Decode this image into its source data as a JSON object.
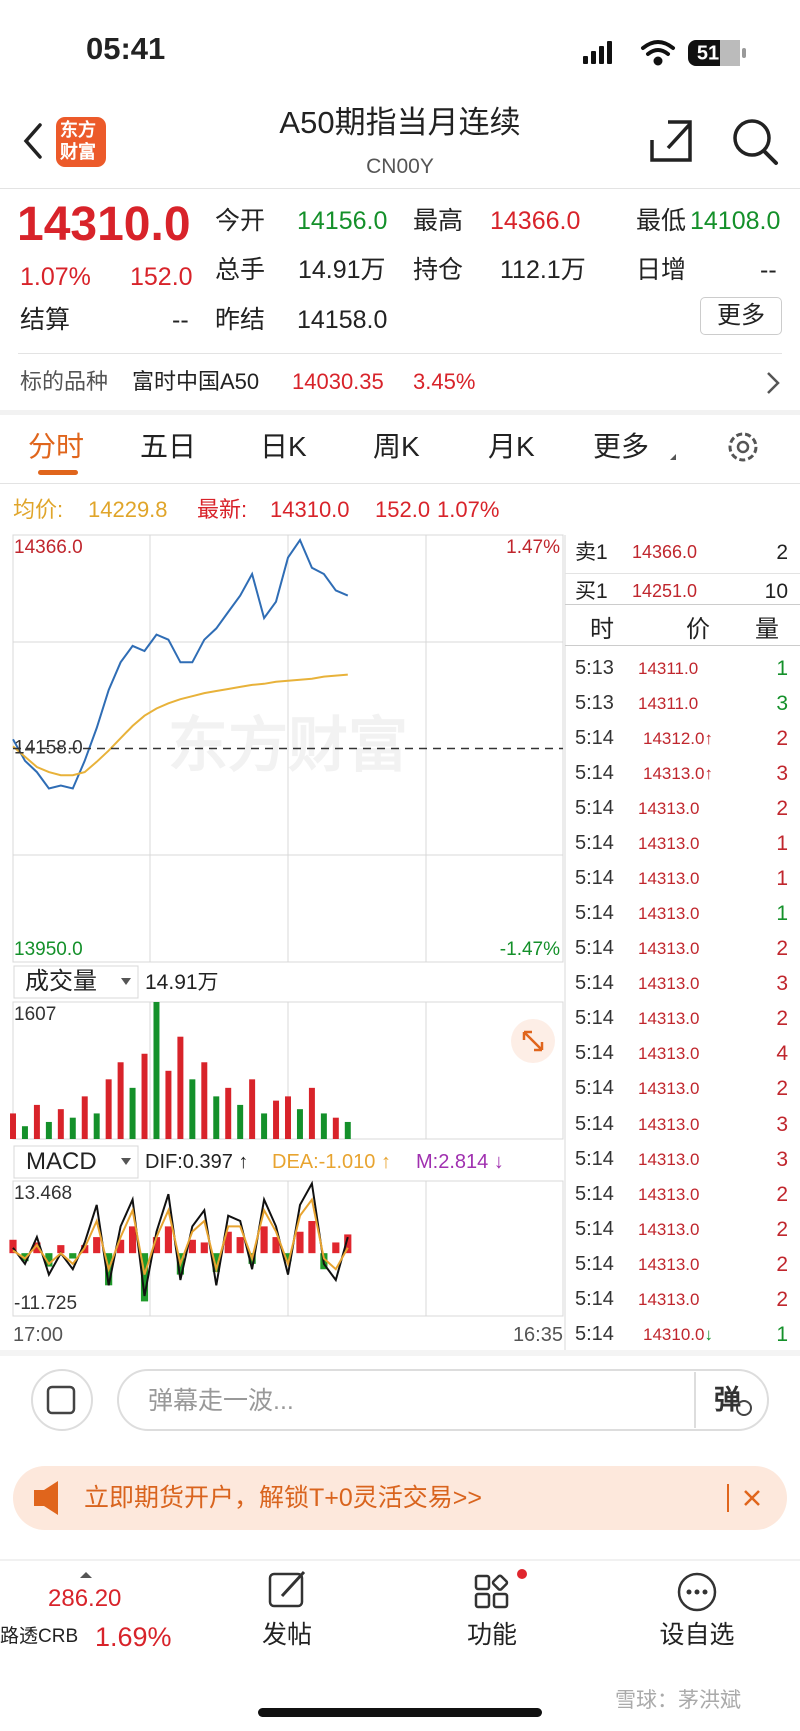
{
  "status_bar": {
    "time": "05:41",
    "battery": "51"
  },
  "header": {
    "logo": [
      "东方",
      "财富"
    ],
    "title": "A50期指当月连续",
    "code": "CN00Y"
  },
  "quote": {
    "last": "14310.0",
    "change_pct": "1.07%",
    "change": "152.0",
    "fields": [
      {
        "label": "今开",
        "value": "14156.0"
      },
      {
        "label": "最高",
        "value": "14366.0"
      },
      {
        "label": "最低",
        "value": "14108.0"
      },
      {
        "label": "总手",
        "value": "14.91万"
      },
      {
        "label": "持仓",
        "value": "112.1万"
      },
      {
        "label": "日增",
        "value": "--"
      },
      {
        "label": "结算",
        "value": "--"
      },
      {
        "label": "昨结",
        "value": "14158.0"
      }
    ],
    "more": "更多"
  },
  "underlying": {
    "label": "标的品种",
    "name": "富时中国A50",
    "price": "14030.35",
    "pct": "3.45%"
  },
  "tabs": [
    "分时",
    "五日",
    "日K",
    "周K",
    "月K",
    "更多"
  ],
  "summary": {
    "avg_label": "均价:",
    "avg": "14229.8",
    "last_label": "最新:",
    "last": "14310.0",
    "change": "152.0",
    "pct": "1.07%"
  },
  "chart_data": [
    {
      "type": "line",
      "watermark": "东方财富",
      "ylim": [
        13950,
        14366
      ],
      "yticks": [
        {
          "value": 14366,
          "label": "14366.0"
        },
        {
          "value": 14158,
          "label": "14158.0"
        },
        {
          "value": 13950,
          "label": "13950.0"
        }
      ],
      "y2lim": [
        -1.47,
        1.47
      ],
      "y2ticks": [
        {
          "value": 1.47,
          "label": "1.47%"
        },
        {
          "value": -1.47,
          "label": "-1.47%"
        }
      ],
      "series": [
        {
          "color": "#2f6db5",
          "values": [
            14167,
            14146,
            14135,
            14119,
            14122,
            14119,
            14146,
            14178,
            14215,
            14242,
            14258,
            14253,
            14269,
            14264,
            14242,
            14242,
            14264,
            14275,
            14291,
            14307,
            14328,
            14285,
            14301,
            14344,
            14361,
            14334,
            14328,
            14312,
            14307,
            null,
            null,
            null,
            null,
            null,
            null,
            null,
            null,
            null,
            null,
            null,
            null,
            null,
            null,
            null,
            null,
            null,
            null
          ]
        },
        {
          "color": "#e8b23a",
          "values": [
            14160,
            14150,
            14140,
            14135,
            14132,
            14132,
            14135,
            14145,
            14156,
            14168,
            14180,
            14190,
            14197,
            14202,
            14206,
            14209,
            14212,
            14214,
            14216,
            14218,
            14220,
            14221,
            14223,
            14224,
            14225,
            14226,
            14228,
            14229,
            14230,
            null,
            null,
            null,
            null,
            null,
            null,
            null,
            null,
            null,
            null,
            null,
            null,
            null,
            null,
            null,
            null,
            null,
            null
          ]
        }
      ]
    },
    {
      "type": "bar",
      "title": "成交量",
      "total": "14.91万",
      "ylim": [
        0,
        1607
      ],
      "yticks": [
        1607
      ],
      "values": [
        300,
        150,
        400,
        200,
        350,
        250,
        500,
        300,
        700,
        900,
        600,
        1000,
        1607,
        800,
        1200,
        700,
        900,
        500,
        600,
        400,
        700,
        300,
        450,
        500,
        350,
        600,
        300,
        250,
        200,
        null,
        null,
        null,
        null,
        null,
        null,
        null,
        null,
        null,
        null,
        null,
        null,
        null,
        null,
        null,
        null,
        null,
        null
      ],
      "colors": [
        "#d8232a",
        "#14902a",
        "#d8232a",
        "#14902a",
        "#d8232a",
        "#14902a",
        "#d8232a",
        "#14902a",
        "#d8232a",
        "#d8232a",
        "#14902a",
        "#d8232a",
        "#14902a",
        "#d8232a",
        "#d8232a",
        "#14902a",
        "#d8232a",
        "#14902a",
        "#d8232a",
        "#14902a",
        "#d8232a",
        "#14902a",
        "#d8232a",
        "#d8232a",
        "#14902a",
        "#d8232a",
        "#14902a",
        "#d8232a",
        "#14902a",
        null,
        null,
        null,
        null,
        null,
        null,
        null,
        null,
        null,
        null,
        null,
        null,
        null,
        null,
        null,
        null,
        null,
        null
      ]
    },
    {
      "type": "macd",
      "title": "MACD",
      "indicators": [
        "DIF:0.397 ↑",
        "DEA:-1.010 ↑",
        "M:2.814 ↓"
      ],
      "time_labels": [
        "17:00",
        "16:35"
      ],
      "ylim": [
        -11.725,
        13.468
      ],
      "yticks": [
        13.468,
        -11.725
      ],
      "colors": {
        "up": "#e0262e",
        "down": "#1f9a2a"
      },
      "values": [
        2.5,
        -1.5,
        2,
        -2.5,
        1.5,
        -1,
        1.5,
        3,
        -6,
        2.5,
        5,
        -9,
        3,
        5,
        -4,
        2.5,
        2,
        -3.5,
        4,
        3,
        -2,
        5,
        3,
        -1.5,
        4,
        6,
        -3,
        2,
        3.5,
        null,
        null,
        null,
        null,
        null,
        null,
        null,
        null,
        null,
        null,
        null,
        null,
        null,
        null,
        null,
        null,
        null,
        null
      ],
      "series": [
        {
          "color": "#111111",
          "values": [
            1,
            -2,
            3,
            -4,
            0,
            -3,
            2,
            9,
            -6,
            5,
            10,
            -8,
            4,
            11,
            -5,
            5,
            8,
            -6,
            7,
            6,
            -3,
            10,
            5,
            -4,
            9,
            13,
            -2,
            -5,
            3,
            null,
            null,
            null,
            null,
            null,
            null,
            null,
            null,
            null,
            null,
            null,
            null,
            null,
            null,
            null,
            null,
            null,
            null
          ]
        },
        {
          "color": "#e8a430",
          "values": [
            0.5,
            -1,
            1.5,
            -2,
            0,
            -2,
            1,
            6,
            -3,
            3,
            8,
            -4,
            3,
            8,
            -2,
            4,
            6,
            -3,
            5,
            5,
            -1,
            8,
            4,
            -2,
            7,
            10,
            -1,
            -3,
            1,
            null,
            null,
            null,
            null,
            null,
            null,
            null,
            null,
            null,
            null,
            null,
            null,
            null,
            null,
            null,
            null,
            null,
            null
          ]
        }
      ]
    }
  ],
  "order_book": [
    {
      "side": "卖1",
      "price": "14366.0",
      "qty": "2"
    },
    {
      "side": "买1",
      "price": "14251.0",
      "qty": "10"
    }
  ],
  "trades": {
    "header": [
      "时",
      "价",
      "量"
    ],
    "rows": [
      {
        "time": "5:13",
        "price": "14311.0",
        "qty": "1",
        "color": "#14902a"
      },
      {
        "time": "5:13",
        "price": "14311.0",
        "qty": "3",
        "color": "#14902a"
      },
      {
        "time": "5:14",
        "price": "14312.0",
        "flag": "↑",
        "qty": "2",
        "color": "#c0262d"
      },
      {
        "time": "5:14",
        "price": "14313.0",
        "flag": "↑",
        "qty": "3",
        "color": "#c0262d"
      },
      {
        "time": "5:14",
        "price": "14313.0",
        "qty": "2",
        "color": "#c0262d"
      },
      {
        "time": "5:14",
        "price": "14313.0",
        "qty": "1",
        "color": "#c0262d"
      },
      {
        "time": "5:14",
        "price": "14313.0",
        "qty": "1",
        "color": "#c0262d"
      },
      {
        "time": "5:14",
        "price": "14313.0",
        "qty": "1",
        "color": "#14902a"
      },
      {
        "time": "5:14",
        "price": "14313.0",
        "qty": "2",
        "color": "#c0262d"
      },
      {
        "time": "5:14",
        "price": "14313.0",
        "qty": "3",
        "color": "#c0262d"
      },
      {
        "time": "5:14",
        "price": "14313.0",
        "qty": "2",
        "color": "#c0262d"
      },
      {
        "time": "5:14",
        "price": "14313.0",
        "qty": "4",
        "color": "#c0262d"
      },
      {
        "time": "5:14",
        "price": "14313.0",
        "qty": "2",
        "color": "#c0262d"
      },
      {
        "time": "5:14",
        "price": "14313.0",
        "qty": "3",
        "color": "#c0262d"
      },
      {
        "time": "5:14",
        "price": "14313.0",
        "qty": "3",
        "color": "#c0262d"
      },
      {
        "time": "5:14",
        "price": "14313.0",
        "qty": "2",
        "color": "#c0262d"
      },
      {
        "time": "5:14",
        "price": "14313.0",
        "qty": "2",
        "color": "#c0262d"
      },
      {
        "time": "5:14",
        "price": "14313.0",
        "qty": "2",
        "color": "#c0262d"
      },
      {
        "time": "5:14",
        "price": "14313.0",
        "qty": "2",
        "color": "#c0262d"
      },
      {
        "time": "5:14",
        "price": "14310.0",
        "flag": "↓",
        "qty": "1",
        "color": "#14902a"
      }
    ]
  },
  "comment_bar": {
    "placeholder": "弹幕走一波...",
    "button": "弹"
  },
  "banner": {
    "text": "立即期货开户，解锁T+0灵活交易>>"
  },
  "nav": {
    "index": {
      "price": "286.20",
      "name": "路透CRB",
      "pct": "1.69%"
    },
    "items": [
      "发帖",
      "功能",
      "设自选"
    ]
  },
  "watermark": "雪球：茅洪斌"
}
